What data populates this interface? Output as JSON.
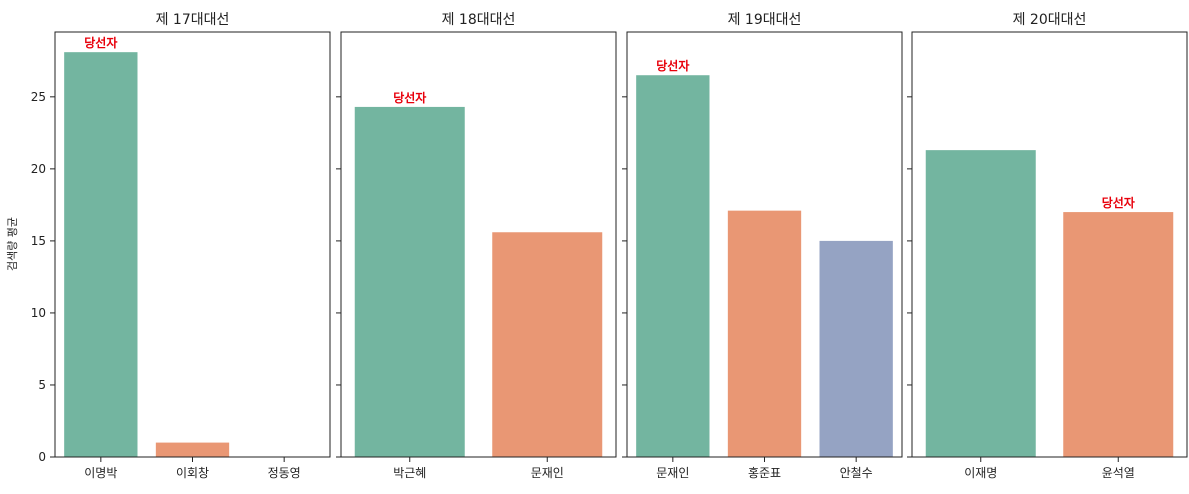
{
  "chart_data": {
    "type": "bar",
    "ylabel": "검색량 평균",
    "ylim": [
      0,
      29.5
    ],
    "yticks": [
      0,
      5,
      10,
      15,
      20,
      25
    ],
    "winner_label": "당선자",
    "colors": [
      "#73b5a0",
      "#e99774",
      "#95a3c3"
    ],
    "winner_label_color": "#e8000b",
    "panels": [
      {
        "title": "제 17대대선",
        "categories": [
          "이명박",
          "이회창",
          "정동영"
        ],
        "values": [
          28.1,
          1.0,
          0
        ],
        "winner_index": 0
      },
      {
        "title": "제 18대대선",
        "categories": [
          "박근혜",
          "문재인"
        ],
        "values": [
          24.3,
          15.6
        ],
        "winner_index": 0
      },
      {
        "title": "제 19대대선",
        "categories": [
          "문재인",
          "홍준표",
          "안철수"
        ],
        "values": [
          26.5,
          17.1,
          15.0
        ],
        "winner_index": 0
      },
      {
        "title": "제 20대대선",
        "categories": [
          "이재명",
          "윤석열"
        ],
        "values": [
          21.3,
          17.0
        ],
        "winner_index": 1
      }
    ]
  }
}
